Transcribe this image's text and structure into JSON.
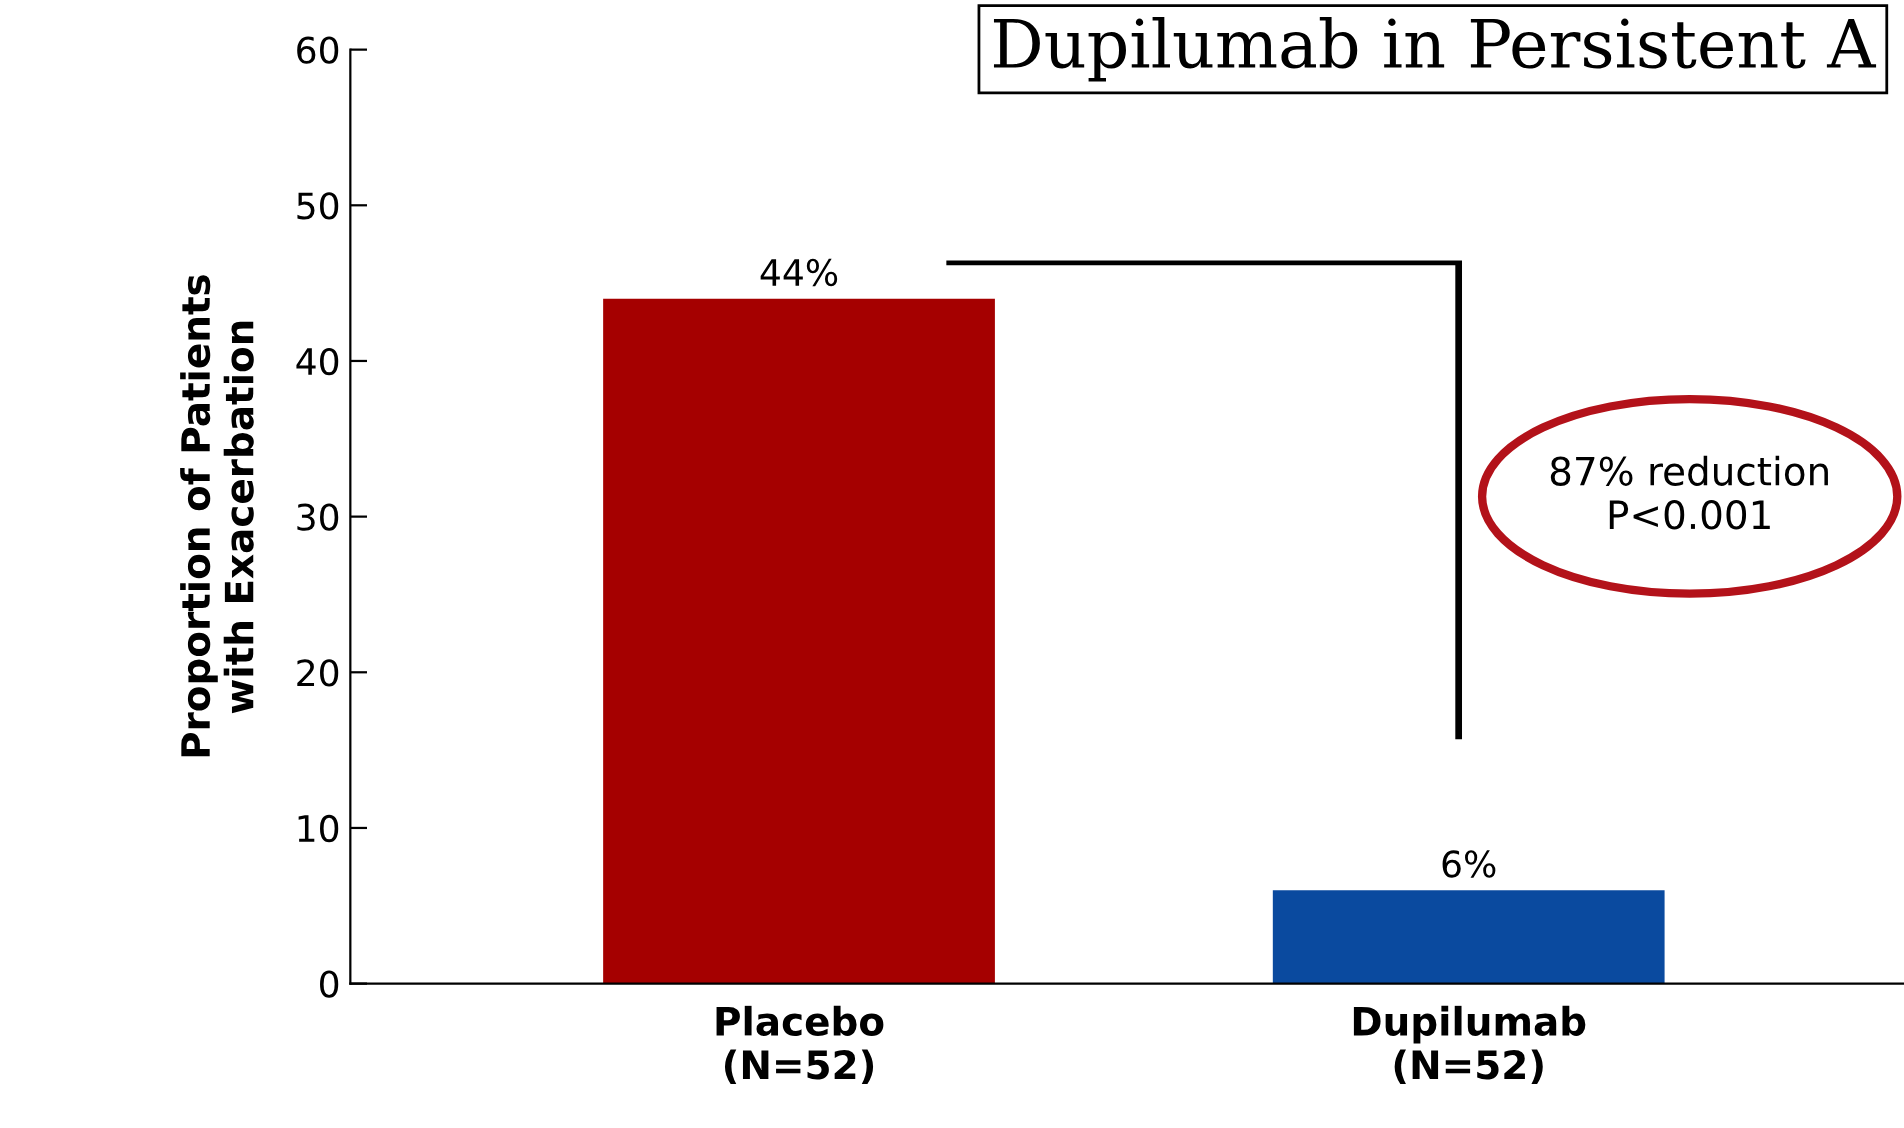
{
  "chart_data": {
    "type": "bar",
    "title": "Dupilumab in Persistent A",
    "categories": [
      "Placebo\n(N=52)",
      "Dupilumab\n(N=52)"
    ],
    "values": [
      44,
      6
    ],
    "colors": [
      "#a50000",
      "#0a4a9f"
    ],
    "value_labels": [
      "44%",
      "6%"
    ],
    "ylabel": "Proportion of Patients\nwith Exacerbation",
    "ylim": [
      0,
      60
    ],
    "yticks": [
      0,
      10,
      20,
      30,
      40,
      50,
      60
    ],
    "grid": false,
    "annotations": [
      "87% reduction\nP<0.001"
    ]
  }
}
